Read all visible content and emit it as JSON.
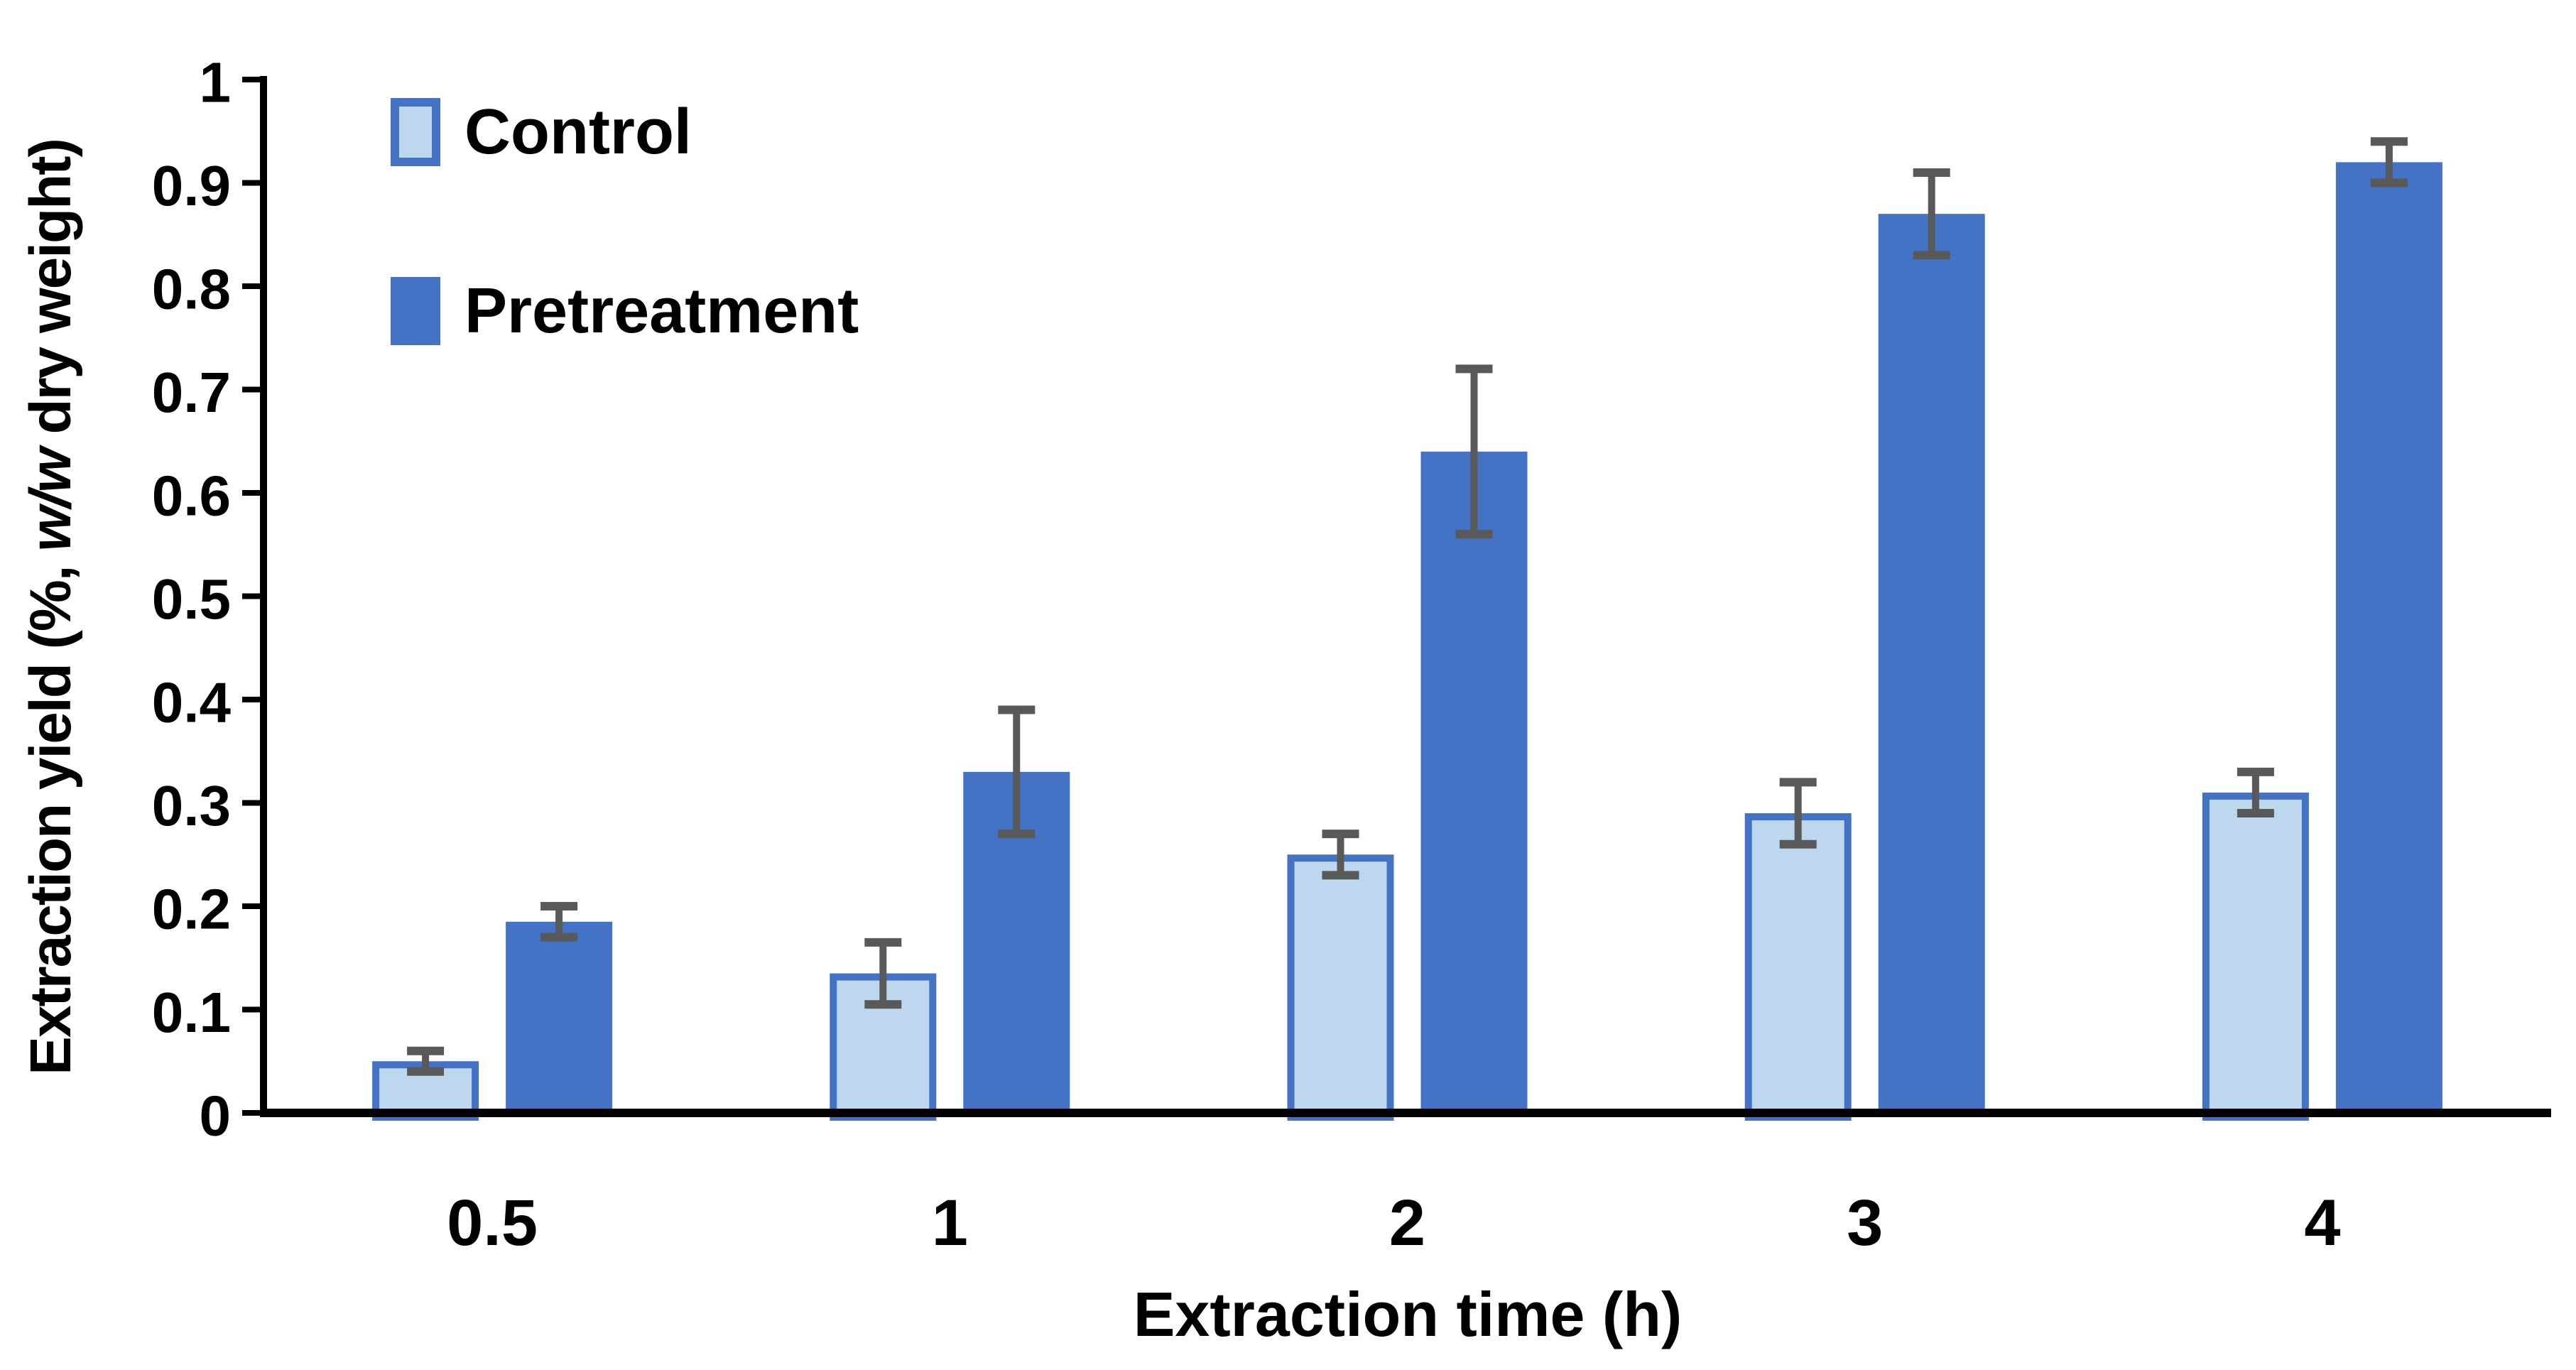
{
  "page": {
    "background": "#FFFFFF"
  },
  "chart_data": {
    "type": "bar",
    "title": "",
    "categories": [
      "0.5",
      "1",
      "2",
      "3",
      "4"
    ],
    "series": [
      {
        "name": "Control",
        "values": [
          0.05,
          0.135,
          0.25,
          0.29,
          0.31
        ],
        "errors_plus": [
          0.01,
          0.03,
          0.02,
          0.03,
          0.02
        ],
        "errors_minus": [
          0.01,
          0.03,
          0.02,
          0.03,
          0.02
        ],
        "fill": "#BDD7EE",
        "border": "#4472C4"
      },
      {
        "name": "Pretreatment",
        "values": [
          0.185,
          0.33,
          0.64,
          0.87,
          0.92
        ],
        "errors_plus": [
          0.015,
          0.06,
          0.08,
          0.04,
          0.02
        ],
        "errors_minus": [
          0.015,
          0.06,
          0.08,
          0.04,
          0.02
        ],
        "fill": "#4472C4",
        "border": "#4472C4"
      }
    ],
    "xlabel": "Extraction time (h)",
    "ylabel": "Extraction yield (%, w/w dry weight)",
    "ylabel_parts": {
      "pre": "Extraction yield (%, ",
      "italic": "w/w",
      "post": " dry weight)"
    },
    "ylim": [
      0,
      1
    ],
    "yticks": [
      0,
      0.1,
      0.2,
      0.3,
      0.4,
      0.5,
      0.6,
      0.7,
      0.8,
      0.9,
      1
    ],
    "ytick_labels": [
      "0",
      "0.1",
      "0.2",
      "0.3",
      "0.4",
      "0.5",
      "0.6",
      "0.7",
      "0.8",
      "0.9",
      "1"
    ],
    "grid": false,
    "legend_position": "inside-top-left",
    "error_bar_color": "#595959",
    "axis_color": "#000000",
    "text_color": "#000000"
  }
}
